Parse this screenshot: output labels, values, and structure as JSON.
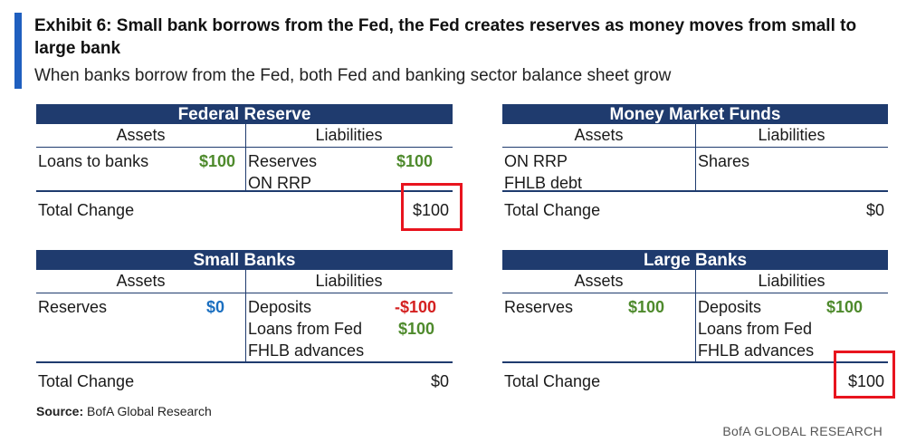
{
  "exhibit": {
    "title": "Exhibit 6: Small bank borrows from the Fed, the Fed creates reserves as money moves from small to large bank",
    "subtitle": "When banks borrow from the Fed, both Fed and banking sector balance sheet grow"
  },
  "headers": {
    "assets": "Assets",
    "liabilities": "Liabilities",
    "total": "Total Change"
  },
  "fed": {
    "name": "Federal Reserve",
    "assets": [
      {
        "label": "Loans to banks",
        "value": "$100"
      }
    ],
    "liabilities": [
      {
        "label": "Reserves",
        "value": "$100"
      },
      {
        "label": "ON RRP",
        "value": ""
      }
    ],
    "total": "$100"
  },
  "mmf": {
    "name": "Money Market Funds",
    "assets": [
      {
        "label": "ON RRP",
        "value": ""
      },
      {
        "label": "FHLB debt",
        "value": ""
      }
    ],
    "liabilities": [
      {
        "label": "Shares",
        "value": ""
      }
    ],
    "total": "$0"
  },
  "small": {
    "name": "Small Banks",
    "assets": [
      {
        "label": "Reserves",
        "value": "$0"
      }
    ],
    "liabilities": [
      {
        "label": "Deposits",
        "value": "-$100"
      },
      {
        "label": "Loans from Fed",
        "value": "$100"
      },
      {
        "label": "FHLB advances",
        "value": ""
      }
    ],
    "total": "$0"
  },
  "large": {
    "name": "Large Banks",
    "assets": [
      {
        "label": "Reserves",
        "value": "$100"
      }
    ],
    "liabilities": [
      {
        "label": "Deposits",
        "value": "$100"
      },
      {
        "label": "Loans from Fed",
        "value": ""
      },
      {
        "label": "FHLB advances",
        "value": ""
      }
    ],
    "total": "$100"
  },
  "footer": {
    "source_label": "Source:",
    "source_text": "BofA Global Research",
    "brand": "BofA GLOBAL RESEARCH"
  },
  "colors": {
    "header": "#1f3b6e",
    "positive": "#4e8a2c",
    "negative": "#d42020",
    "neutral_value": "#1b6fc0",
    "highlight_box": "#e8141e",
    "accent": "#1f5fbf"
  }
}
